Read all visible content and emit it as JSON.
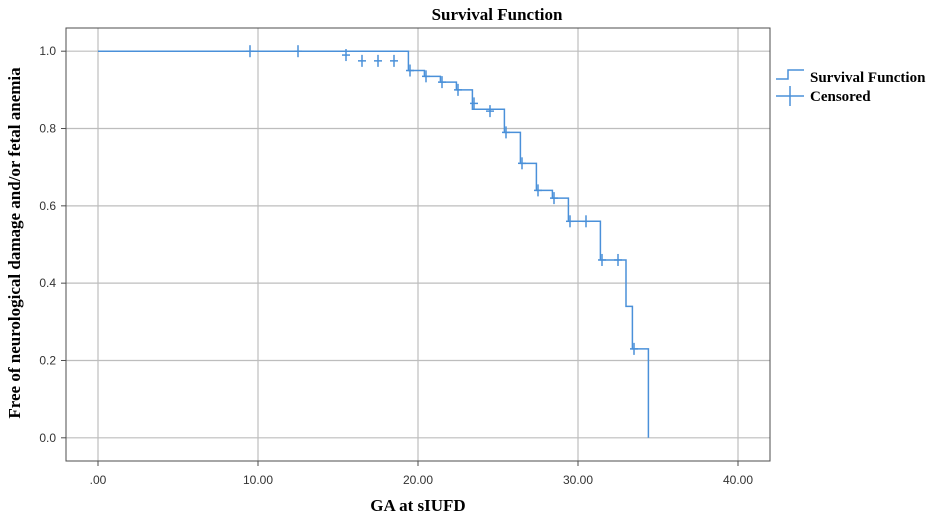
{
  "chart_data": {
    "type": "line",
    "title": "Survival Function",
    "xlabel": "GA at sIUFD",
    "ylabel": "Free of neurological damage and/or fetal anemia",
    "xlim": [
      -2,
      42
    ],
    "ylim": [
      -0.06,
      1.06
    ],
    "x_ticks": [
      0,
      10,
      20,
      30,
      40
    ],
    "x_tick_labels": [
      ".00",
      "10.00",
      "20.00",
      "30.00",
      "40.00"
    ],
    "y_ticks": [
      0,
      0.2,
      0.4,
      0.6,
      0.8,
      1.0
    ],
    "y_tick_labels": [
      "0.0",
      "0.2",
      "0.4",
      "0.6",
      "0.8",
      "1.0"
    ],
    "grid": true,
    "legend_position": "right",
    "colors": {
      "series": "#4a90d9",
      "grid": "#bdbdbd",
      "frame": "#4d4d4d"
    },
    "series": [
      {
        "name": "Survival Function",
        "kind": "step",
        "x": [
          0,
          19.4,
          20.4,
          21.4,
          22.4,
          23.4,
          25.4,
          26.4,
          27.4,
          28.4,
          29.4,
          31.4,
          33.0,
          33.4,
          34.4,
          34.4
        ],
        "y": [
          1.0,
          0.95,
          0.935,
          0.92,
          0.9,
          0.85,
          0.79,
          0.71,
          0.64,
          0.62,
          0.56,
          0.46,
          0.34,
          0.23,
          0.23,
          0.0
        ]
      },
      {
        "name": "Censored",
        "kind": "marker",
        "x": [
          9.5,
          12.5,
          15.5,
          16.5,
          17.5,
          18.5,
          19.5,
          20.5,
          21.5,
          22.5,
          23.5,
          24.5,
          25.5,
          26.5,
          27.5,
          28.5,
          29.5,
          30.5,
          31.5,
          32.5,
          33.5
        ],
        "y": [
          1.0,
          1.0,
          0.99,
          0.975,
          0.975,
          0.975,
          0.95,
          0.935,
          0.92,
          0.9,
          0.865,
          0.845,
          0.79,
          0.71,
          0.64,
          0.62,
          0.56,
          0.56,
          0.46,
          0.46,
          0.23
        ]
      }
    ]
  }
}
